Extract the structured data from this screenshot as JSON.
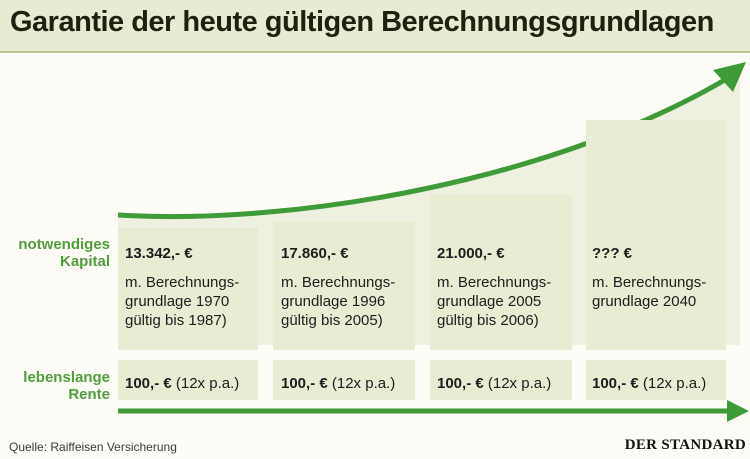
{
  "title": "Garantie der heute gültigen Berechnungsgrundlagen",
  "row_labels": {
    "kapital_line1": "notwendiges",
    "kapital_line2": "Kapital",
    "rente_line1": "lebenslange",
    "rente_line2": "Rente"
  },
  "columns": [
    {
      "amount": "13.342,- €",
      "desc": [
        "m. Berechnungs-",
        "grundlage 1970",
        "gültig bis 1987)"
      ],
      "rente_value": "100,- €",
      "rente_note": "(12x p.a.)"
    },
    {
      "amount": "17.860,- €",
      "desc": [
        "m. Berechnungs-",
        "grundlage 1996",
        "gültig bis 2005)"
      ],
      "rente_value": "100,- €",
      "rente_note": "(12x p.a.)"
    },
    {
      "amount": "21.000,- €",
      "desc": [
        "m. Berechnungs-",
        "grundlage 2005",
        "gültig bis 2006)"
      ],
      "rente_value": "100,- €",
      "rente_note": "(12x p.a.)"
    },
    {
      "amount": "??? €",
      "desc": [
        "m. Berechnungs-",
        "grundlage 2040"
      ],
      "rente_value": "100,- €",
      "rente_note": "(12x p.a.)"
    }
  ],
  "footer": {
    "source": "Quelle: Raiffeisen Versicherung",
    "logo": "DER STANDARD"
  },
  "colors": {
    "arrow_green": "#3f9a38",
    "box_fill": "#e7ecd3",
    "label_green": "#4f9e3c",
    "title_bar": "#e6ebd1"
  },
  "chart_data": {
    "type": "table",
    "rows": [
      "notwendiges Kapital",
      "lebenslange Rente"
    ],
    "columns": [
      {
        "kapital": "13.342,- €",
        "basis": "m. Berechnungsgrundlage 1970 gültig bis 1987)",
        "rente": "100,- € (12x p.a.)"
      },
      {
        "kapital": "17.860,- €",
        "basis": "m. Berechnungsgrundlage 1996 gültig bis 2005)",
        "rente": "100,- € (12x p.a.)"
      },
      {
        "kapital": "21.000,- €",
        "basis": "m. Berechnungsgrundlage 2005 gültig bis 2006)",
        "rente": "100,- € (12x p.a.)"
      },
      {
        "kapital": "??? €",
        "basis": "m. Berechnungsgrundlage 2040",
        "rente": "100,- € (12x p.a.)"
      }
    ],
    "kapital_values": [
      13342,
      17860,
      21000,
      null
    ],
    "rente_values": [
      100,
      100,
      100,
      100
    ]
  }
}
